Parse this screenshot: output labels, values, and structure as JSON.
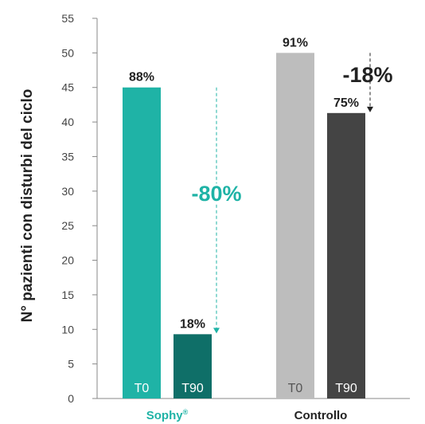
{
  "chart_data": {
    "type": "bar",
    "ylabel": "N° pazienti con disturbi del ciclo",
    "ylim": [
      0,
      55
    ],
    "yticks": [
      0,
      5,
      10,
      15,
      20,
      25,
      30,
      35,
      40,
      45,
      50,
      55
    ],
    "grid": false,
    "groups": [
      {
        "label": "Sophy",
        "label_suffix": "®",
        "label_color": "#1fb3a6",
        "bars": [
          {
            "label": "T0",
            "value": 45,
            "pct": "88%",
            "color": "#1fb3a6"
          },
          {
            "label": "T90",
            "value": 9.3,
            "pct": "18%",
            "color": "#0f6f68"
          }
        ],
        "delta": "-80%",
        "delta_color": "#1fb3a6"
      },
      {
        "label": "Controllo",
        "label_suffix": "",
        "label_color": "#222222",
        "bars": [
          {
            "label": "T0",
            "value": 50,
            "pct": "91%",
            "color": "#bdbdbd"
          },
          {
            "label": "T90",
            "value": 41.3,
            "pct": "75%",
            "color": "#444444"
          }
        ],
        "delta": "-18%",
        "delta_color": "#222222"
      }
    ]
  }
}
